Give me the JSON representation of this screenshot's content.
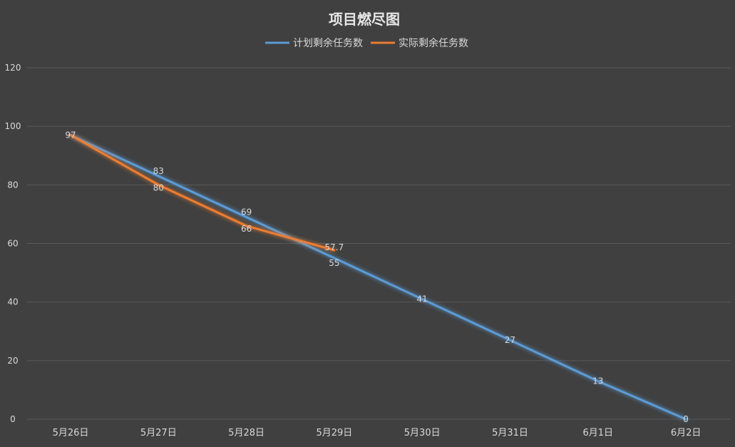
{
  "chart_data": {
    "type": "line",
    "title": "项目燃尽图",
    "xlabel": "",
    "ylabel": "",
    "categories": [
      "5月26日",
      "5月27日",
      "5月28日",
      "5月29日",
      "5月30日",
      "5月31日",
      "6月1日",
      "6月2日"
    ],
    "ylim": [
      0,
      120
    ],
    "yticks": [
      0,
      20,
      40,
      60,
      80,
      100,
      120
    ],
    "grid": true,
    "legend_position": "top-center",
    "series": [
      {
        "name": "计划剩余任务数",
        "color": "#5B9BD5",
        "values": [
          97,
          83,
          69,
          55,
          41,
          27,
          13,
          0
        ],
        "labels": [
          "97",
          "83",
          "69",
          "55",
          "41",
          "27",
          "13",
          "0"
        ]
      },
      {
        "name": "实际剩余任务数",
        "color": "#ED7D31",
        "values": [
          97,
          80,
          66,
          57.7,
          null,
          null,
          null,
          null
        ],
        "labels": [
          "97",
          "80",
          "66",
          "57.7",
          null,
          null,
          null,
          null
        ]
      }
    ]
  },
  "colors": {
    "background": "#404040",
    "grid": "#5a5a5a",
    "text": "#d9d9d9",
    "title": "#e6e6e6"
  }
}
